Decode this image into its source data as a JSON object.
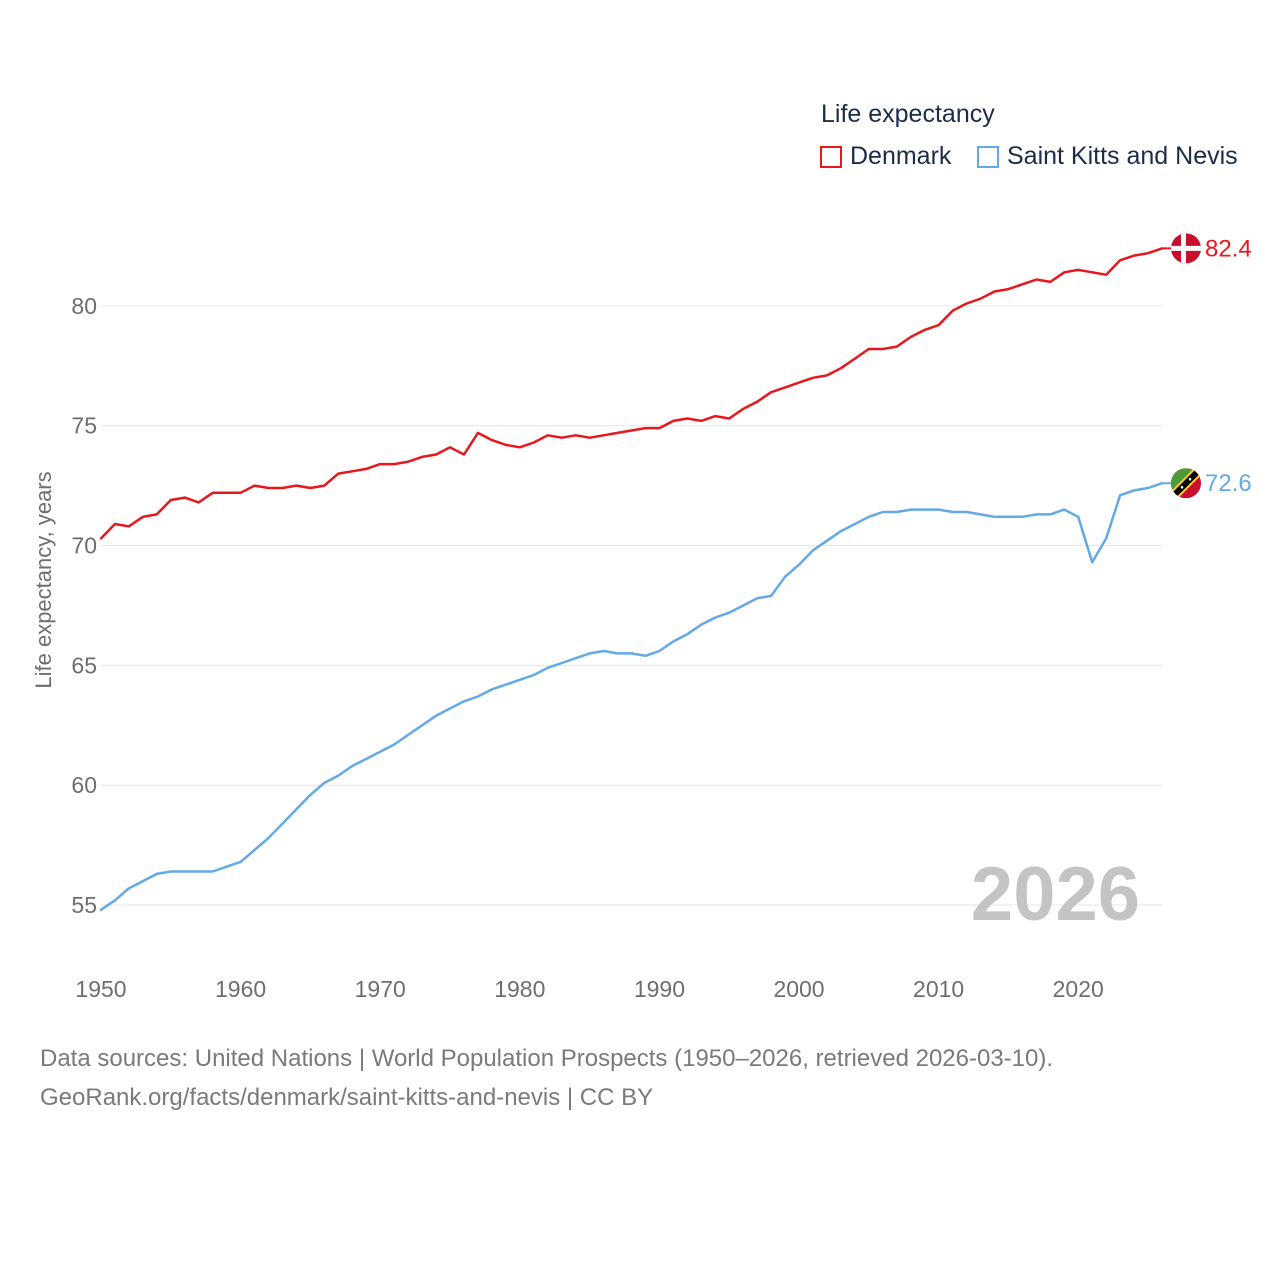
{
  "chart_data": {
    "type": "line",
    "title": "",
    "legend_title": "Life expectancy",
    "xlabel": "",
    "ylabel": "Life expectancy, years",
    "xlim": [
      1950,
      2026
    ],
    "ylim": [
      53.5,
      83.5
    ],
    "x_ticks": [
      1950,
      1960,
      1970,
      1980,
      1990,
      2000,
      2010,
      2020
    ],
    "y_ticks": [
      55,
      60,
      65,
      70,
      75,
      80
    ],
    "year_label": "2026",
    "x": [
      1950,
      1951,
      1952,
      1953,
      1954,
      1955,
      1956,
      1957,
      1958,
      1959,
      1960,
      1961,
      1962,
      1963,
      1964,
      1965,
      1966,
      1967,
      1968,
      1969,
      1970,
      1971,
      1972,
      1973,
      1974,
      1975,
      1976,
      1977,
      1978,
      1979,
      1980,
      1981,
      1982,
      1983,
      1984,
      1985,
      1986,
      1987,
      1988,
      1989,
      1990,
      1991,
      1992,
      1993,
      1994,
      1995,
      1996,
      1997,
      1998,
      1999,
      2000,
      2001,
      2002,
      2003,
      2004,
      2005,
      2006,
      2007,
      2008,
      2009,
      2010,
      2011,
      2012,
      2013,
      2014,
      2015,
      2016,
      2017,
      2018,
      2019,
      2020,
      2021,
      2022,
      2023,
      2024,
      2025,
      2026
    ],
    "series": [
      {
        "name": "Denmark",
        "color": "#e8171d",
        "end_label": "82.4",
        "flag": "denmark-flag",
        "values": [
          70.3,
          70.9,
          70.8,
          71.2,
          71.3,
          71.9,
          72.0,
          71.8,
          72.2,
          72.2,
          72.2,
          72.5,
          72.4,
          72.4,
          72.5,
          72.4,
          72.5,
          73.0,
          73.1,
          73.2,
          73.4,
          73.4,
          73.5,
          73.7,
          73.8,
          74.1,
          73.8,
          74.7,
          74.4,
          74.2,
          74.1,
          74.3,
          74.6,
          74.5,
          74.6,
          74.5,
          74.6,
          74.7,
          74.8,
          74.9,
          74.9,
          75.2,
          75.3,
          75.2,
          75.4,
          75.3,
          75.7,
          76.0,
          76.4,
          76.6,
          76.8,
          77.0,
          77.1,
          77.4,
          77.8,
          78.2,
          78.2,
          78.3,
          78.7,
          79.0,
          79.2,
          79.8,
          80.1,
          80.3,
          80.6,
          80.7,
          80.9,
          81.1,
          81.0,
          81.4,
          81.5,
          81.4,
          81.3,
          81.9,
          82.1,
          82.2,
          82.4
        ]
      },
      {
        "name": "Saint Kitts and Nevis",
        "color": "#63a9e6",
        "end_label": "72.6",
        "flag": "saint-kitts-and-nevis-flag",
        "values": [
          54.8,
          55.2,
          55.7,
          56.0,
          56.3,
          56.4,
          56.4,
          56.4,
          56.4,
          56.6,
          56.8,
          57.3,
          57.8,
          58.4,
          59.0,
          59.6,
          60.1,
          60.4,
          60.8,
          61.1,
          61.4,
          61.7,
          62.1,
          62.5,
          62.9,
          63.2,
          63.5,
          63.7,
          64.0,
          64.2,
          64.4,
          64.6,
          64.9,
          65.1,
          65.3,
          65.5,
          65.6,
          65.5,
          65.5,
          65.4,
          65.6,
          66.0,
          66.3,
          66.7,
          67.0,
          67.2,
          67.5,
          67.8,
          67.9,
          68.7,
          69.2,
          69.8,
          70.2,
          70.6,
          70.9,
          71.2,
          71.4,
          71.4,
          71.5,
          71.5,
          71.5,
          71.4,
          71.4,
          71.3,
          71.2,
          71.2,
          71.2,
          71.3,
          71.3,
          71.5,
          71.2,
          69.3,
          70.3,
          72.1,
          72.3,
          72.4,
          72.6
        ]
      }
    ]
  },
  "source": {
    "line1": "Data sources: United Nations | World Population Prospects (1950–2026, retrieved 2026-03-10).",
    "line2": "GeoRank.org/facts/denmark/saint-kitts-and-nevis | CC BY"
  }
}
